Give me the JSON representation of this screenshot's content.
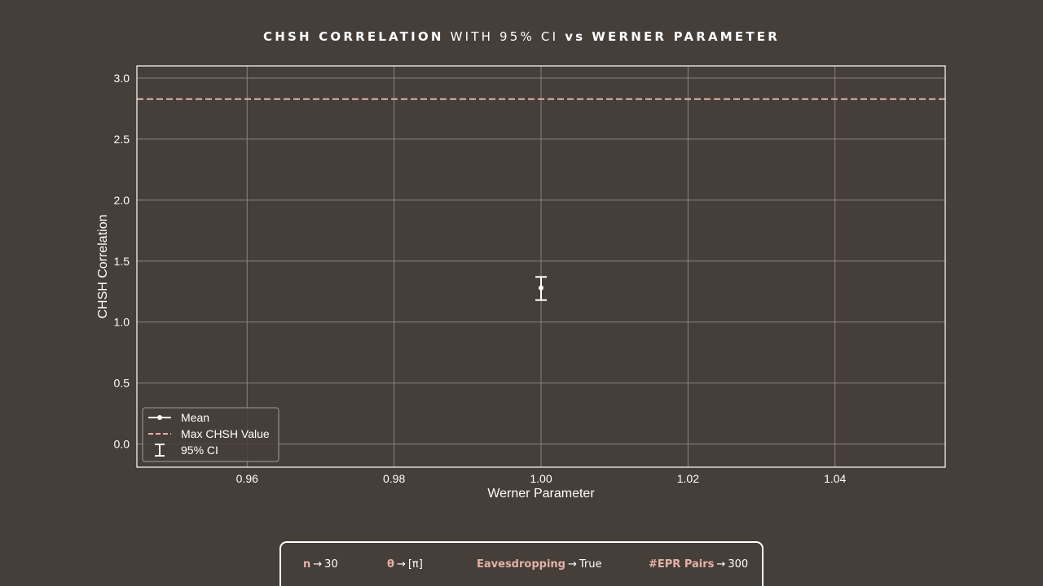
{
  "title": {
    "part1": "CHSH CORRELATION",
    "part2": "WITH 95% CI",
    "part3": "vs",
    "part4": "WERNER PARAMETER"
  },
  "params": [
    {
      "key": "n",
      "value": "30"
    },
    {
      "key": "θ",
      "value": "[π]"
    },
    {
      "key": "Eavesdropping",
      "value": "True"
    },
    {
      "key": "#EPR Pairs",
      "value": "300"
    }
  ],
  "arrow": "→",
  "colors": {
    "background": "#463e39",
    "foreground": "#ffffff",
    "accent": "#e2b2a6",
    "grid": "#8a8380"
  },
  "chart_data": {
    "type": "scatter",
    "title": "CHSH CORRELATION WITH 95% CI vs WERNER PARAMETER",
    "xlabel": "Werner Parameter",
    "ylabel": "CHSH Correlation",
    "xlim": [
      0.945,
      1.055
    ],
    "ylim": [
      -0.19,
      3.1
    ],
    "x_ticks": [
      0.96,
      0.98,
      1.0,
      1.02,
      1.04
    ],
    "x_tick_labels": [
      "0.96",
      "0.98",
      "1.00",
      "1.02",
      "1.04"
    ],
    "y_ticks": [
      0.0,
      0.5,
      1.0,
      1.5,
      2.0,
      2.5,
      3.0
    ],
    "y_tick_labels": [
      "0.0",
      "0.5",
      "1.0",
      "1.5",
      "2.0",
      "2.5",
      "3.0"
    ],
    "grid": true,
    "legend_position": "lower-left",
    "series": [
      {
        "name": "Mean",
        "x": [
          1.0
        ],
        "y": [
          1.28
        ],
        "ci_lower": [
          1.18
        ],
        "ci_upper": [
          1.37
        ]
      }
    ],
    "reference_lines": [
      {
        "name": "Max CHSH Value",
        "y": 2.828,
        "style": "dashed",
        "color": "#e2b2a6"
      }
    ],
    "legend": [
      "Mean",
      "Max CHSH Value",
      "95% CI"
    ]
  }
}
